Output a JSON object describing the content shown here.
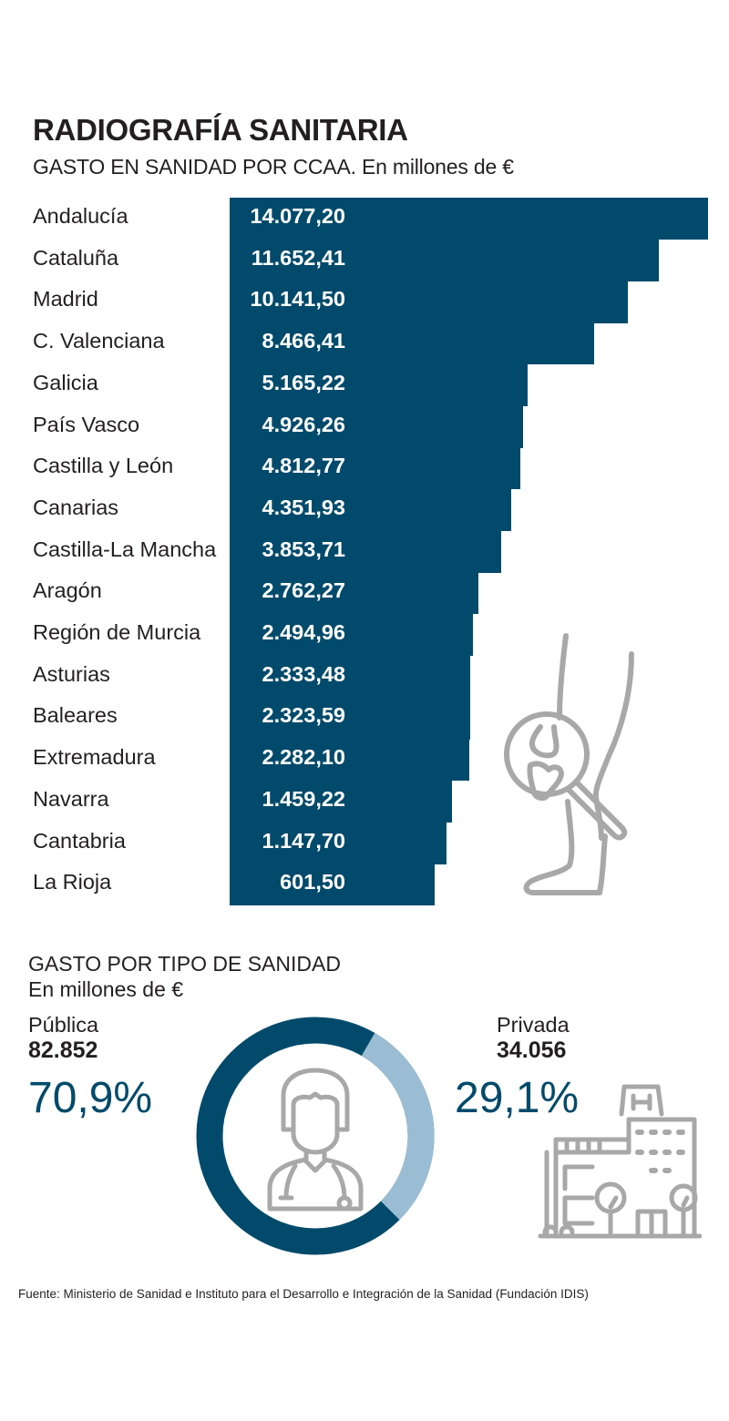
{
  "header": {
    "title": "RADIOGRAFÍA SANITARIA",
    "subtitle": "GASTO EN SANIDAD POR CCAA. En millones de €"
  },
  "bar_section": {
    "rows": [
      {
        "label": "Andalucía",
        "value": "14.077,20"
      },
      {
        "label": "Cataluña",
        "value": "11.652,41"
      },
      {
        "label": "Madrid",
        "value": "10.141,50"
      },
      {
        "label": "C. Valenciana",
        "value": "8.466,41"
      },
      {
        "label": "Galicia",
        "value": "5.165,22"
      },
      {
        "label": "País Vasco",
        "value": "4.926,26"
      },
      {
        "label": "Castilla y León",
        "value": "4.812,77"
      },
      {
        "label": "Canarias",
        "value": "4.351,93"
      },
      {
        "label": "Castilla-La Mancha",
        "value": "3.853,71"
      },
      {
        "label": "Aragón",
        "value": "2.762,27"
      },
      {
        "label": "Región de Murcia",
        "value": "2.494,96"
      },
      {
        "label": "Asturias",
        "value": "2.333,48"
      },
      {
        "label": "Baleares",
        "value": "2.323,59"
      },
      {
        "label": "Extremadura",
        "value": "2.282,10"
      },
      {
        "label": "Navarra",
        "value": "1.459,22"
      },
      {
        "label": "Cantabria",
        "value": "1.147,70"
      },
      {
        "label": "La Rioja",
        "value": "601,50"
      }
    ],
    "illustration": "leg-bone-magnifier-icon"
  },
  "type_section": {
    "title": "GASTO POR TIPO DE SANIDAD",
    "subtitle": "En millones de €",
    "publica": {
      "label": "Pública",
      "value": "82.852",
      "percent": "70,9%"
    },
    "privada": {
      "label": "Privada",
      "value": "34.056",
      "percent": "29,1%"
    },
    "center_icon": "female-doctor-icon",
    "side_icon": "hospital-building-icon"
  },
  "source": "Fuente: Ministerio de Sanidad e Instituto para el Desarrollo e Integración de la Sanidad (Fundación IDIS)",
  "colors": {
    "primary": "#014a6b",
    "secondary": "#9bbdd3",
    "icon_gray": "#a8a8a8",
    "text": "#231f20"
  },
  "chart_data": [
    {
      "type": "bar",
      "orientation": "horizontal",
      "title": "RADIOGRAFÍA SANITARIA",
      "subtitle": "GASTO EN SANIDAD POR CCAA. En millones de €",
      "xlabel": "",
      "ylabel": "",
      "categories": [
        "Andalucía",
        "Cataluña",
        "Madrid",
        "C. Valenciana",
        "Galicia",
        "País Vasco",
        "Castilla y León",
        "Canarias",
        "Castilla-La Mancha",
        "Aragón",
        "Región de Murcia",
        "Asturias",
        "Baleares",
        "Extremadura",
        "Navarra",
        "Cantabria",
        "La Rioja"
      ],
      "values": [
        14077.2,
        11652.41,
        10141.5,
        8466.41,
        5165.22,
        4926.26,
        4812.77,
        4351.93,
        3853.71,
        2762.27,
        2494.96,
        2333.48,
        2323.59,
        2282.1,
        1459.22,
        1147.7,
        601.5
      ],
      "data_labels": true,
      "grid": false,
      "legend": "none"
    },
    {
      "type": "pie",
      "variant": "donut",
      "title": "GASTO POR TIPO DE SANIDAD",
      "subtitle": "En millones de €",
      "categories": [
        "Pública",
        "Privada"
      ],
      "values": [
        82852,
        34056
      ],
      "percentages": [
        70.9,
        29.1
      ],
      "colors": [
        "#014a6b",
        "#9bbdd3"
      ]
    }
  ]
}
